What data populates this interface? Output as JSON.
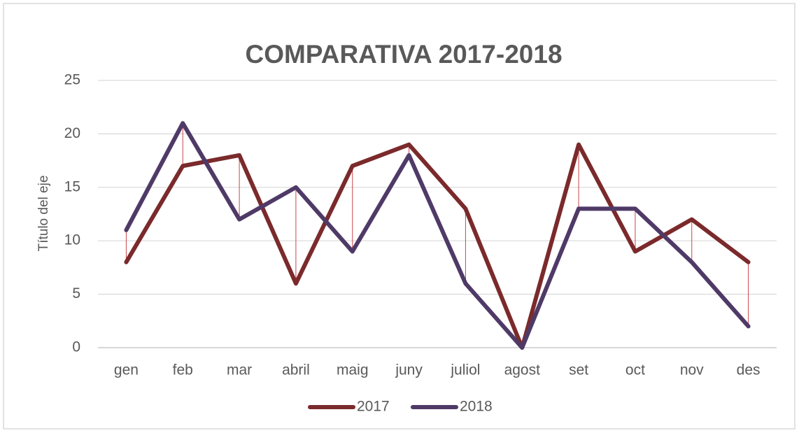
{
  "chart_data": {
    "type": "line",
    "title": "COMPARATIVA 2017-2018",
    "y_label": "Título del eje",
    "categories": [
      "gen",
      "feb",
      "mar",
      "abril",
      "maig",
      "juny",
      "juliol",
      "agost",
      "set",
      "oct",
      "nov",
      "des"
    ],
    "series": [
      {
        "name": "2017",
        "color": "#7b2a2c",
        "values": [
          8,
          17,
          18,
          6,
          17,
          19,
          13,
          0,
          19,
          9,
          12,
          8
        ]
      },
      {
        "name": "2018",
        "color": "#4f3a67",
        "values": [
          11,
          21,
          12,
          15,
          9,
          18,
          6,
          0,
          13,
          13,
          8,
          2
        ]
      }
    ],
    "ylim": [
      0,
      25
    ],
    "yticks": [
      0,
      5,
      10,
      15,
      20,
      25
    ],
    "grid": true,
    "high_low_lines": true,
    "high_low_color": "#c9444a",
    "legend": "bottom"
  }
}
